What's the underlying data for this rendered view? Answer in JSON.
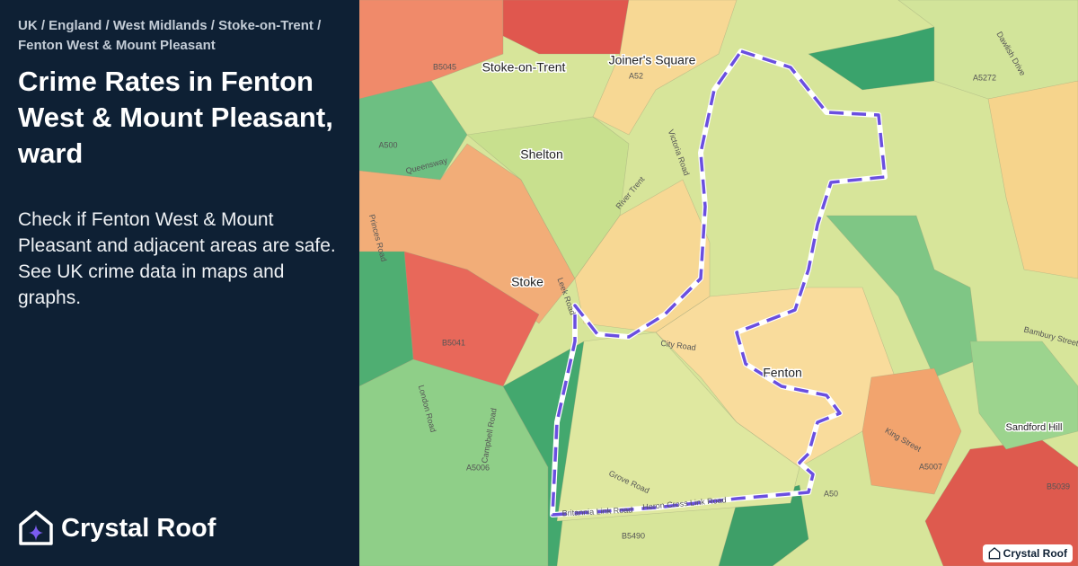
{
  "breadcrumb": "UK / England / West Midlands / Stoke-on-Trent / Fenton West & Mount Pleasant",
  "title": "Crime Rates in Fenton West & Mount Pleasant, ward",
  "description": "Check if Fenton West & Mount Pleasant and adjacent areas are safe. See UK crime data in maps and graphs.",
  "brand": "Crystal Roof",
  "map": {
    "place_labels": [
      "Stoke-on-Trent",
      "Joiner's Square",
      "Shelton",
      "Stoke",
      "Fenton",
      "Sandford Hill"
    ],
    "road_labels": [
      "B5045",
      "A52",
      "A500",
      "Queensway",
      "Leek Road",
      "River Trent",
      "Victoria Road",
      "City Road",
      "B5041",
      "London Road",
      "Campbell Road",
      "A5006",
      "Grove Road",
      "Britannia Link Road",
      "Heron Cross Link Road",
      "A50",
      "B5490",
      "A5007",
      "B5039",
      "Princes Road",
      "Dawlish Drive",
      "A5272",
      "Bambury Street",
      "King Street"
    ],
    "attribution": "Crystal Roof"
  }
}
